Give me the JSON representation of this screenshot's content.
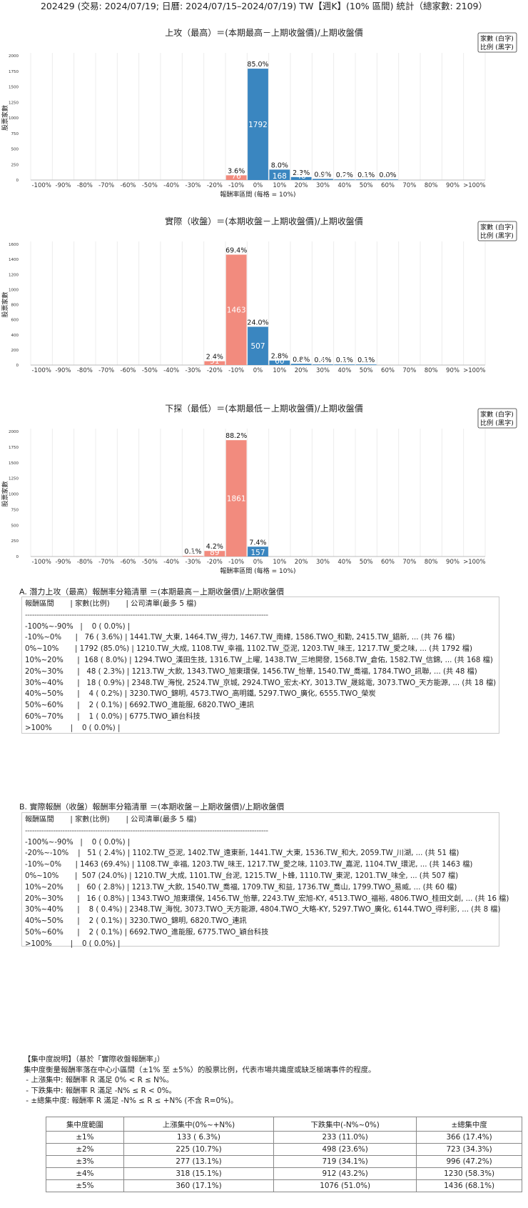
{
  "title": "202429 (交易: 2024/07/19; 日曆: 2024/07/15–2024/07/19) TW【週K】(10% 區間) 統計（總家數: 2109）",
  "chart_data": [
    {
      "type": "bar",
      "title": "上攻（最高）＝(本期最高－上期收盤價)/上期收盤價",
      "xlabel": "報酬率區間 (每格 = 10%)",
      "ylabel": "股票家數",
      "legend": [
        "家數 (白字)",
        "比例 (黑字)"
      ],
      "legend_position": "top-right",
      "ylim": [
        0,
        2000
      ],
      "yticks": [
        0,
        250,
        500,
        750,
        1000,
        1250,
        1500,
        1750,
        2000
      ],
      "categories": [
        "-100%",
        "-90%",
        "-80%",
        "-70%",
        "-60%",
        "-50%",
        "-40%",
        "-30%",
        "-20%",
        "-10%",
        "0%",
        "10%",
        "20%",
        "30%",
        "40%",
        "50%",
        "60%",
        ">100%"
      ],
      "tick_labels": [
        "-100%",
        "-90%",
        "-80%",
        "-70%",
        "-60%",
        "-50%",
        "-40%",
        "-30%",
        "-20%",
        "-10%",
        "0%",
        "10%",
        "20%",
        "30%",
        "40%",
        "50%",
        "60%",
        "70%",
        "80%",
        "90%",
        ">100%"
      ],
      "bars": [
        {
          "bin": -1,
          "value": 76,
          "pct": "3.6%",
          "color": "#f28b7e"
        },
        {
          "bin": 0,
          "value": 1792,
          "pct": "85.0%",
          "color": "#3a86c0"
        },
        {
          "bin": 1,
          "value": 168,
          "pct": "8.0%",
          "color": "#3a86c0"
        },
        {
          "bin": 2,
          "value": 48,
          "pct": "2.3%",
          "color": "#3a86c0"
        },
        {
          "bin": 3,
          "value": 18,
          "pct": "0.9%",
          "color": "#3a86c0"
        },
        {
          "bin": 4,
          "value": 4,
          "pct": "0.2%",
          "color": "#3a86c0"
        },
        {
          "bin": 5,
          "value": 2,
          "pct": "0.1%",
          "color": "#3a86c0"
        },
        {
          "bin": 6,
          "value": 1,
          "pct": "0.0%",
          "color": "#3a86c0"
        }
      ]
    },
    {
      "type": "bar",
      "title": "實際（收盤）＝(本期收盤－上期收盤價)/上期收盤價",
      "xlabel": "",
      "ylabel": "股票家數",
      "legend": [
        "家數 (白字)",
        "比例 (黑字)"
      ],
      "legend_position": "top-right",
      "ylim": [
        0,
        1600
      ],
      "yticks": [
        0,
        200,
        400,
        600,
        800,
        1000,
        1200,
        1400,
        1600
      ],
      "tick_labels": [
        "-100%",
        "-90%",
        "-80%",
        "-70%",
        "-60%",
        "-50%",
        "-40%",
        "-30%",
        "-20%",
        "-10%",
        "0%",
        "10%",
        "20%",
        "30%",
        "40%",
        "50%",
        "60%",
        "70%",
        "80%",
        "90%",
        ">100%"
      ],
      "bars": [
        {
          "bin": -2,
          "value": 51,
          "pct": "2.4%",
          "color": "#f28b7e"
        },
        {
          "bin": -1,
          "value": 1463,
          "pct": "69.4%",
          "color": "#f28b7e"
        },
        {
          "bin": 0,
          "value": 507,
          "pct": "24.0%",
          "color": "#3a86c0"
        },
        {
          "bin": 1,
          "value": 60,
          "pct": "2.8%",
          "color": "#3a86c0"
        },
        {
          "bin": 2,
          "value": 16,
          "pct": "0.8%",
          "color": "#3a86c0"
        },
        {
          "bin": 3,
          "value": 8,
          "pct": "0.4%",
          "color": "#3a86c0"
        },
        {
          "bin": 4,
          "value": 2,
          "pct": "0.1%",
          "color": "#3a86c0"
        },
        {
          "bin": 5,
          "value": 2,
          "pct": "0.1%",
          "color": "#3a86c0"
        }
      ]
    },
    {
      "type": "bar",
      "title": "下探（最低）＝(本期最低－上期收盤價)/上期收盤價",
      "xlabel": "報酬率區間 (每格 = 10%)",
      "ylabel": "股票家數",
      "legend": [
        "家數 (白字)",
        "比例 (黑字)"
      ],
      "legend_position": "top-right",
      "ylim": [
        0,
        2000
      ],
      "yticks": [
        0,
        250,
        500,
        750,
        1000,
        1250,
        1500,
        1750,
        2000
      ],
      "tick_labels": [
        "-100%",
        "-90%",
        "-80%",
        "-70%",
        "-60%",
        "-50%",
        "-40%",
        "-30%",
        "-20%",
        "-10%",
        "0%",
        "10%",
        "20%",
        "30%",
        "40%",
        "50%",
        "60%",
        "70%",
        "80%",
        "90%",
        ">100%"
      ],
      "bars": [
        {
          "bin": -3,
          "value": 2,
          "pct": "0.1%",
          "color": "#f28b7e"
        },
        {
          "bin": -2,
          "value": 89,
          "pct": "4.2%",
          "color": "#f28b7e"
        },
        {
          "bin": -1,
          "value": 1861,
          "pct": "88.2%",
          "color": "#f28b7e"
        },
        {
          "bin": 0,
          "value": 157,
          "pct": "7.4%",
          "color": "#3a86c0"
        }
      ]
    }
  ],
  "section_a": {
    "title": "A. 潛力上攻（最高）報酬率分箱清單 ＝(本期最高－上期收盤價)/上期收盤價",
    "header": "報酬區間       | 家數(比例)       | 公司清單(最多 5 檔)",
    "separator": "--------------------------------------------------------------------------------------------------------",
    "rows": [
      "-100%~-90%   |    0 ( 0.0%) |",
      "-10%~0%      |   76 ( 3.6%) | 1441.TW_大東, 1464.TW_得力, 1467.TW_南緯, 1586.TWO_和勤, 2415.TW_錩新, ... (共 76 檔)",
      "0%~10%       | 1792 (85.0%) | 1210.TW_大成, 1108.TW_幸福, 1102.TW_亞泥, 1203.TW_味王, 1217.TW_愛之味, ... (共 1792 檔)",
      "10%~20%      |  168 ( 8.0%) | 1294.TWO_漢田生技, 1316.TW_上曜, 1438.TW_三地開發, 1568.TW_倉佑, 1582.TW_信錦, ... (共 168 檔)",
      "20%~30%      |   48 ( 2.3%) | 1213.TW_大飲, 1343.TWO_旭東環保, 1456.TW_怡華, 1540.TW_喬福, 1784.TWO_訊聯, ... (共 48 檔)",
      "30%~40%      |   18 ( 0.9%) | 2348.TW_海悅, 2524.TW_京城, 2924.TWO_宏太-KY, 3013.TW_晟銘電, 3073.TWO_天方能源, ... (共 18 檔)",
      "40%~50%      |    4 ( 0.2%) | 3230.TWO_錦明, 4573.TWO_高明鐵, 5297.TWO_廣化, 6555.TWO_榮炭",
      "50%~60%      |    2 ( 0.1%) | 6692.TWO_進能服, 6820.TWO_連訊",
      "60%~70%      |    1 ( 0.0%) | 6775.TWO_穎台科技",
      ">100%        |    0 ( 0.0%) |"
    ]
  },
  "section_b": {
    "title": "B. 實際報酬（收盤）報酬率分箱清單 ＝(本期收盤－上期收盤價)/上期收盤價",
    "header": "報酬區間       | 家數(比例)       | 公司清單(最多 5 檔)",
    "separator": "--------------------------------------------------------------------------------------------------------",
    "rows": [
      "-100%~-90%   |    0 ( 0.0%) |",
      "-20%~-10%    |   51 ( 2.4%) | 1102.TW_亞泥, 1402.TW_遠東新, 1441.TW_大東, 1536.TW_和大, 2059.TW_川湖, ... (共 51 檔)",
      "-10%~0%      | 1463 (69.4%) | 1108.TW_幸福, 1203.TW_味王, 1217.TW_愛之味, 1103.TW_嘉泥, 1104.TW_環泥, ... (共 1463 檔)",
      "0%~10%       |  507 (24.0%) | 1210.TW_大成, 1101.TW_台泥, 1215.TW_卜蜂, 1110.TW_東泥, 1201.TW_味全, ... (共 507 檔)",
      "10%~20%      |   60 ( 2.8%) | 1213.TW_大飲, 1540.TW_喬福, 1709.TW_和益, 1736.TW_喬山, 1799.TWO_易威, ... (共 60 檔)",
      "20%~30%      |   16 ( 0.8%) | 1343.TWO_旭東環保, 1456.TW_怡華, 2243.TW_宏旭-KY, 4513.TWO_福裕, 4806.TWO_桂田文創, ... (共 16 檔)",
      "30%~40%      |    8 ( 0.4%) | 2348.TW_海悅, 3073.TWO_天方能源, 4804.TWO_大略-KY, 5297.TWO_廣化, 6144.TWO_得利影, ... (共 8 檔)",
      "40%~50%      |    2 ( 0.1%) | 3230.TWO_錦明, 6820.TWO_連訊",
      "50%~60%      |    2 ( 0.1%) | 6692.TWO_進能服, 6775.TWO_穎台科技",
      ">100%        |    0 ( 0.0%) |"
    ]
  },
  "concentration": {
    "title": "【集中度說明】（基於「實際收盤報酬率」）",
    "lines": [
      "集中度衡量報酬率落在中心小區間（±1% 至 ±5%）的股票比例，代表市場共識度或缺乏極端事件的程度。",
      " - 上漲集中: 報酬率 R 滿足 0% < R ≤ N%。",
      " - 下跌集中: 報酬率 R 滿足 -N% ≤ R < 0%。",
      " - ±總集中度: 報酬率 R 滿足 -N% ≤ R ≤ +N% (不含 R=0%)。"
    ],
    "headers": [
      "集中度範圍",
      "上漲集中(0%~+N%)",
      "下跌集中(-N%~0%)",
      "±總集中度"
    ],
    "rows": [
      [
        "±1%",
        "133 ( 6.3%)",
        "233 (11.0%)",
        "366 (17.4%)"
      ],
      [
        "±2%",
        "225 (10.7%)",
        "498 (23.6%)",
        "723 (34.3%)"
      ],
      [
        "±3%",
        "277 (13.1%)",
        "719 (34.1%)",
        "996 (47.2%)"
      ],
      [
        "±4%",
        "318 (15.1%)",
        "912 (43.2%)",
        "1230 (58.3%)"
      ],
      [
        "±5%",
        "360 (17.1%)",
        "1076 (51.0%)",
        "1436 (68.1%)"
      ]
    ]
  }
}
